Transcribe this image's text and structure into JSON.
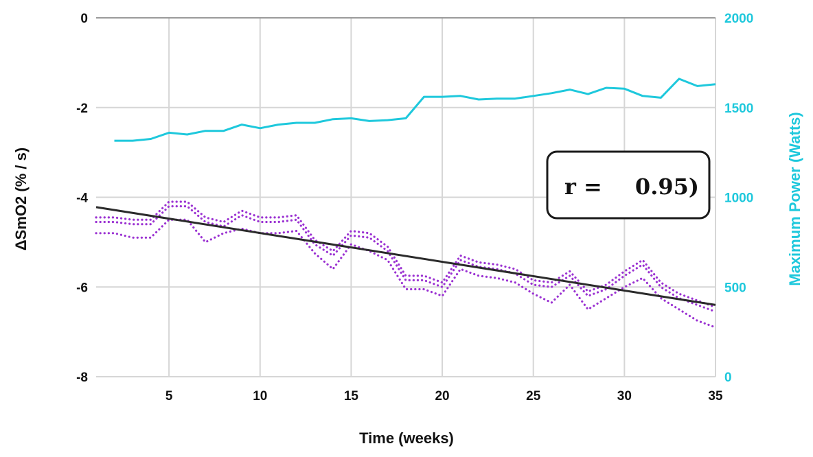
{
  "chart_data": {
    "type": "line",
    "xlabel": "Time (weeks)",
    "ylabel_left": "ΔSmO2 (% / s)",
    "ylabel_right": "Maximum Power (Watts)",
    "xlim": [
      1,
      35
    ],
    "x_ticks": [
      5,
      10,
      15,
      20,
      25,
      30,
      35
    ],
    "ylim_left": [
      -8,
      0
    ],
    "y_ticks_left": [
      0,
      -2,
      -4,
      -6,
      -8
    ],
    "ylim_right": [
      0,
      2000
    ],
    "y_ticks_right": [
      2000,
      1500,
      1000,
      500,
      0
    ],
    "grid": true,
    "annotation": {
      "r_label": "r =",
      "r_value": "0.95)"
    },
    "colors": {
      "power": "#1ec8dc",
      "smo2": "#9b32d2",
      "trend": "#2b2b2b",
      "grid": "#d6d6d6",
      "axis_text_right": "#1ec8dc"
    },
    "series": [
      {
        "axis": "right",
        "style": "solid",
        "color": "#1ec8dc",
        "x": [
          2,
          3,
          4,
          5,
          6,
          7,
          8,
          9,
          10,
          11,
          12,
          13,
          14,
          15,
          16,
          17,
          18,
          19,
          20,
          21,
          22,
          23,
          24,
          25,
          26,
          27,
          28,
          29,
          30,
          31,
          32,
          33,
          34,
          35
        ],
        "values": [
          1315,
          1315,
          1325,
          1360,
          1350,
          1370,
          1370,
          1405,
          1385,
          1405,
          1415,
          1415,
          1435,
          1440,
          1425,
          1430,
          1440,
          1560,
          1560,
          1565,
          1545,
          1550,
          1550,
          1565,
          1580,
          1600,
          1575,
          1610,
          1605,
          1565,
          1555,
          1660,
          1620,
          1630
        ]
      },
      {
        "axis": "left",
        "style": "dotted",
        "color": "#9b32d2",
        "x": [
          1,
          2,
          3,
          4,
          5,
          6,
          7,
          8,
          9,
          10,
          11,
          12,
          13,
          14,
          15,
          16,
          17,
          18,
          19,
          20,
          21,
          22,
          23,
          24,
          25,
          26,
          27,
          28,
          29,
          30,
          31,
          32,
          33,
          34,
          35
        ],
        "values": [
          -4.45,
          -4.45,
          -4.5,
          -4.5,
          -4.1,
          -4.1,
          -4.45,
          -4.55,
          -4.3,
          -4.45,
          -4.45,
          -4.4,
          -4.95,
          -5.2,
          -4.75,
          -4.8,
          -5.1,
          -5.75,
          -5.75,
          -5.9,
          -5.3,
          -5.45,
          -5.5,
          -5.6,
          -5.85,
          -5.9,
          -5.65,
          -6.1,
          -5.95,
          -5.65,
          -5.4,
          -5.9,
          -6.15,
          -6.3,
          -6.45
        ]
      },
      {
        "axis": "left",
        "style": "dotted",
        "color": "#9b32d2",
        "x": [
          1,
          2,
          3,
          4,
          5,
          6,
          7,
          8,
          9,
          10,
          11,
          12,
          13,
          14,
          15,
          16,
          17,
          18,
          19,
          20,
          21,
          22,
          23,
          24,
          25,
          26,
          27,
          28,
          29,
          30,
          31,
          32,
          33,
          34,
          35
        ],
        "values": [
          -4.55,
          -4.55,
          -4.6,
          -4.6,
          -4.2,
          -4.2,
          -4.55,
          -4.65,
          -4.4,
          -4.55,
          -4.55,
          -4.5,
          -5.05,
          -5.3,
          -4.85,
          -4.9,
          -5.2,
          -5.85,
          -5.85,
          -6.0,
          -5.4,
          -5.55,
          -5.6,
          -5.7,
          -5.95,
          -6.0,
          -5.75,
          -6.2,
          -6.05,
          -5.75,
          -5.5,
          -6.0,
          -6.25,
          -6.4,
          -6.55
        ]
      },
      {
        "axis": "left",
        "style": "dotted",
        "color": "#9b32d2",
        "x": [
          1,
          2,
          3,
          4,
          5,
          6,
          7,
          8,
          9,
          10,
          11,
          12,
          13,
          14,
          15,
          16,
          17,
          18,
          19,
          20,
          21,
          22,
          23,
          24,
          25,
          26,
          27,
          28,
          29,
          30,
          31,
          32,
          33,
          34,
          35
        ],
        "values": [
          -4.8,
          -4.8,
          -4.9,
          -4.9,
          -4.5,
          -4.5,
          -5.0,
          -4.8,
          -4.7,
          -4.8,
          -4.8,
          -4.75,
          -5.25,
          -5.6,
          -5.05,
          -5.2,
          -5.4,
          -6.05,
          -6.05,
          -6.2,
          -5.6,
          -5.75,
          -5.8,
          -5.9,
          -6.15,
          -6.35,
          -5.95,
          -6.5,
          -6.25,
          -6.0,
          -5.8,
          -6.25,
          -6.5,
          -6.75,
          -6.9
        ]
      },
      {
        "axis": "left",
        "style": "solid",
        "color": "#2b2b2b",
        "x": [
          1,
          35
        ],
        "values": [
          -4.22,
          -6.4
        ]
      }
    ]
  }
}
